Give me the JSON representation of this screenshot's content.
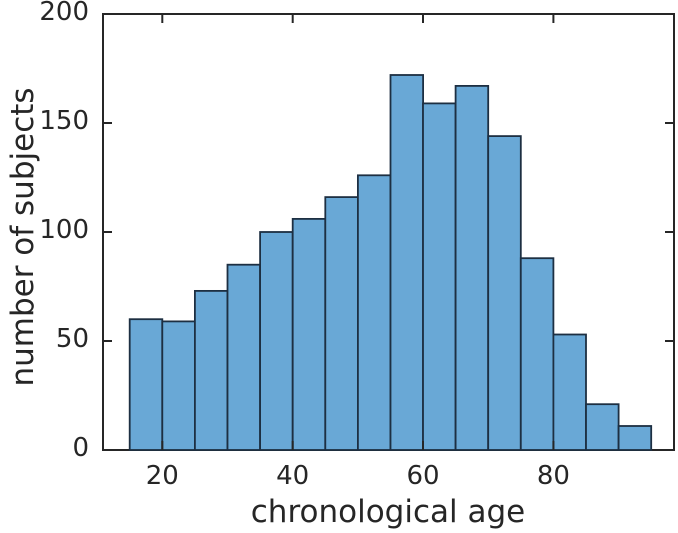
{
  "chart_data": {
    "type": "bar",
    "subtype": "histogram",
    "title": "",
    "xlabel": "chronological age",
    "ylabel": "number of subjects",
    "bin_edges": [
      15,
      20,
      25,
      30,
      35,
      40,
      45,
      50,
      55,
      60,
      65,
      70,
      75,
      80,
      85,
      90,
      95
    ],
    "counts": [
      60,
      59,
      73,
      85,
      100,
      106,
      116,
      126,
      172,
      159,
      167,
      144,
      88,
      53,
      21,
      11
    ],
    "xticks": [
      20,
      40,
      60,
      80
    ],
    "yticks": [
      0,
      50,
      100,
      150,
      200
    ],
    "xlim": [
      10.9,
      98.5
    ],
    "ylim": [
      0,
      200
    ],
    "grid": false,
    "box": true,
    "tick_direction": "in",
    "bar_fill": "#69a8d6",
    "bar_edge": "#1d2f42",
    "axis_color": "#262626",
    "background": "#ffffff"
  }
}
